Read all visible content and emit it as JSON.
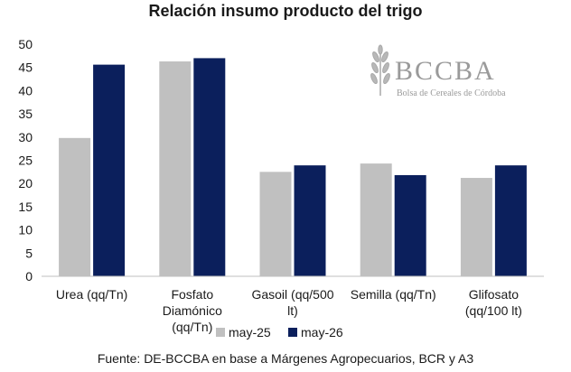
{
  "chart_data": {
    "type": "bar",
    "title": "Relación insumo producto del trigo",
    "categories": [
      [
        "Urea (qq/Tn)"
      ],
      [
        "Fosfato",
        "Diamónico",
        "(qq/Tn)"
      ],
      [
        "Gasoil (qq/500",
        "lt)"
      ],
      [
        "Semilla (qq/Tn)"
      ],
      [
        "Glifosato",
        "(qq/100 lt)"
      ]
    ],
    "series": [
      {
        "name": "may-25",
        "color": "#c0c0c0",
        "values": [
          29.8,
          46.3,
          22.5,
          24.3,
          21.2
        ]
      },
      {
        "name": "may-26",
        "color": "#0b1f5c",
        "values": [
          45.6,
          47.0,
          23.9,
          21.8,
          23.9
        ]
      }
    ],
    "ylim": [
      0,
      50
    ],
    "yticks": [
      0,
      5,
      10,
      15,
      20,
      25,
      30,
      35,
      40,
      45,
      50
    ],
    "grid": false,
    "legend_position": "bottom"
  },
  "logo": {
    "name": "BCCBA",
    "subtitle": "Bolsa de Cereales de Córdoba"
  },
  "source": "Fuente: DE-BCCBA en base a Márgenes Agropecuarios, BCR y A3"
}
